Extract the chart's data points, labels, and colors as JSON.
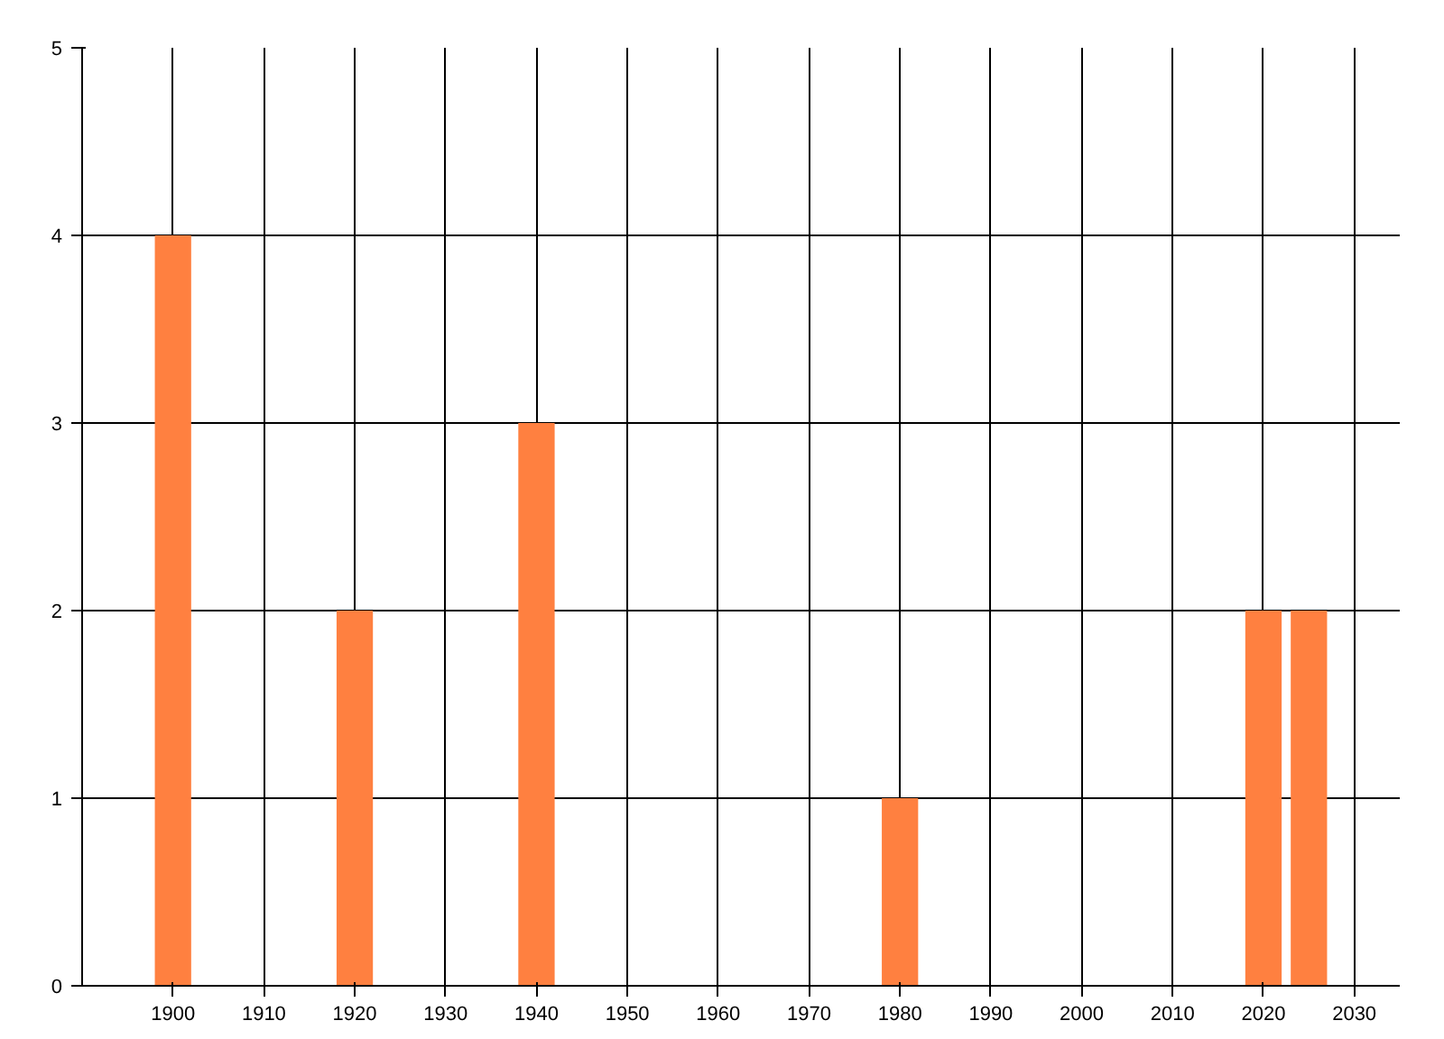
{
  "chart_data": {
    "type": "bar",
    "x": [
      1900,
      1920,
      1940,
      1980,
      2020,
      2025
    ],
    "values": [
      4,
      2,
      3,
      1,
      2,
      2
    ],
    "color": "#ff8040",
    "xlim": [
      1890,
      2035
    ],
    "xticks": [
      1900,
      1910,
      1920,
      1930,
      1940,
      1950,
      1960,
      1970,
      1980,
      1990,
      2000,
      2010,
      2020,
      2030
    ],
    "ylim": [
      0,
      5
    ],
    "yticks": [
      0,
      1,
      2,
      3,
      4,
      5
    ],
    "grid": true
  }
}
